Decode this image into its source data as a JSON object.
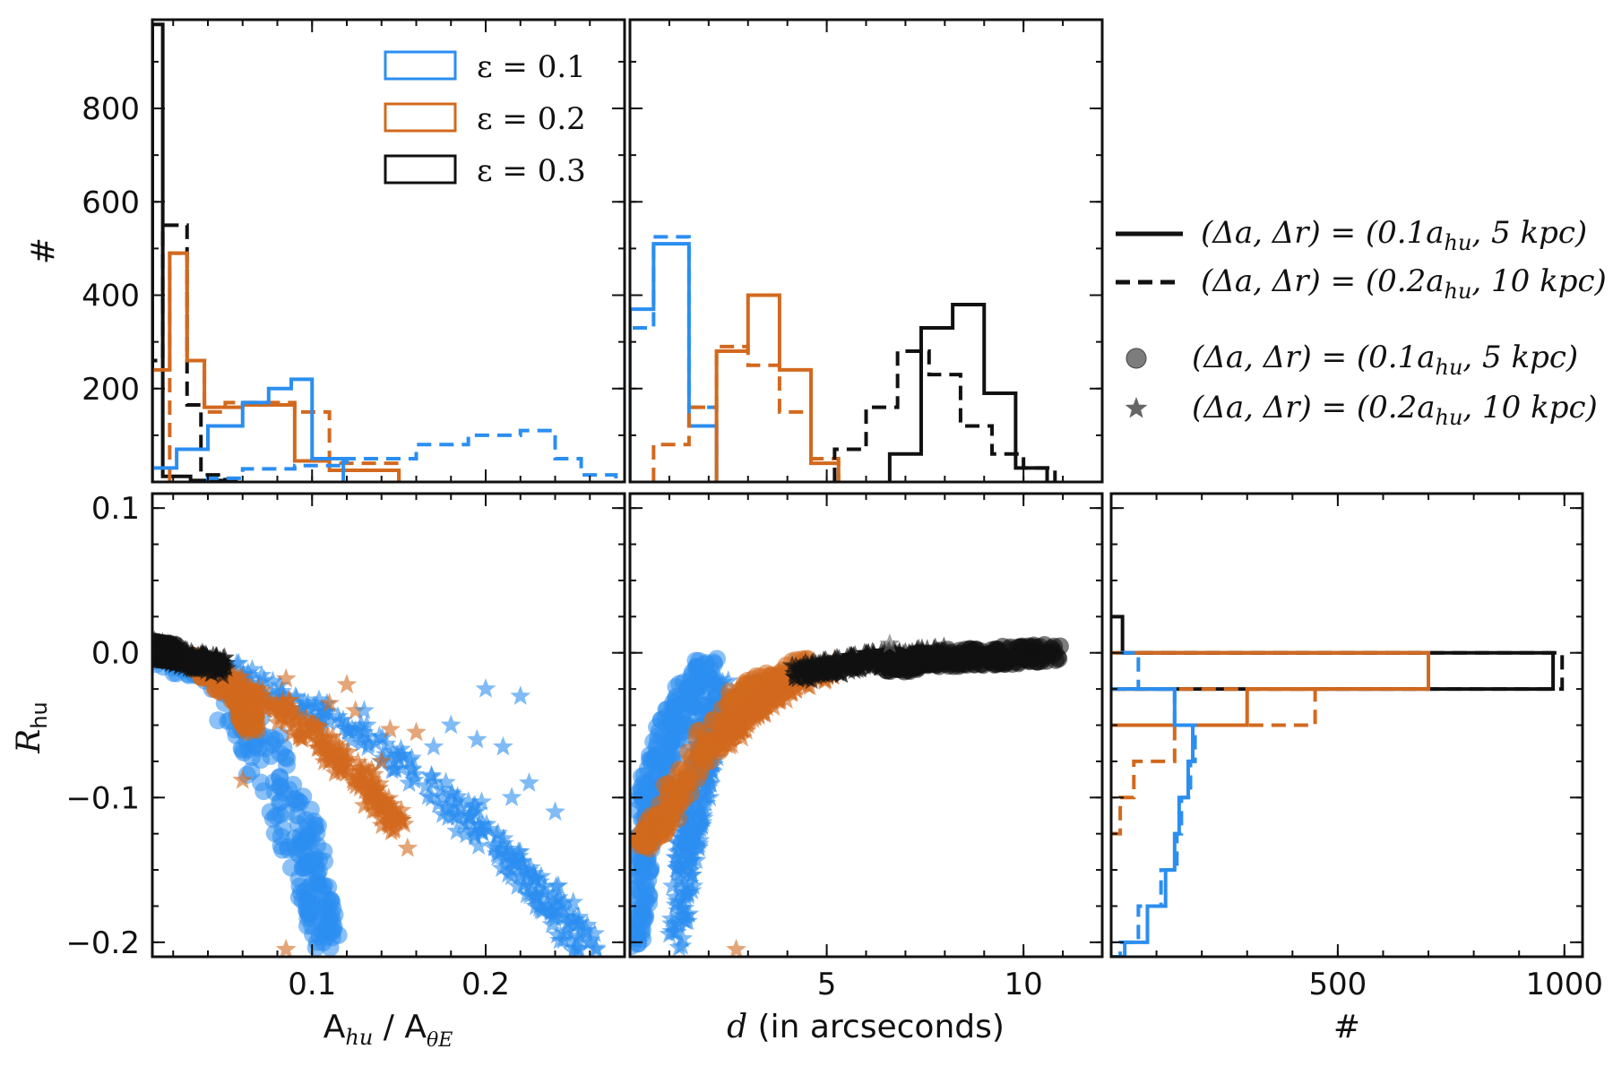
{
  "colors": {
    "eps01": "#2b8ef0",
    "eps02": "#d2691e",
    "eps03": "#111111",
    "marker_grey": "#666666"
  },
  "legends": {
    "epsilon": [
      {
        "label": "ε = 0.1",
        "color": "#2b8ef0"
      },
      {
        "label": "ε = 0.2",
        "color": "#d2691e"
      },
      {
        "label": "ε = 0.3",
        "color": "#111111"
      }
    ],
    "config": [
      {
        "label": "(Δa, Δr) = (0.1a",
        "sub": "hu",
        "tail": ", 5 kpc)",
        "style": "solid"
      },
      {
        "label": "(Δa, Δr) = (0.2a",
        "sub": "hu",
        "tail": ", 10 kpc)",
        "style": "dashed"
      },
      {
        "label": "(Δa, Δr) = (0.1a",
        "sub": "hu",
        "tail": ", 5 kpc)",
        "marker": "circle"
      },
      {
        "label": "(Δa, Δr) = (0.2a",
        "sub": "hu",
        "tail": ", 10 kpc)",
        "marker": "star"
      }
    ]
  },
  "chart_data": [
    {
      "id": "hist_area",
      "type": "histogram",
      "xlim": [
        0.008,
        0.28
      ],
      "ylim": [
        0,
        990
      ],
      "yticks": [
        200,
        400,
        600,
        800
      ],
      "ylabel": "#",
      "series": [
        {
          "name": "ε=0.3 solid",
          "color": "eps03",
          "style": "solid",
          "edges": [
            0.008,
            0.014,
            0.03,
            0.05
          ],
          "counts": [
            980,
            12,
            3
          ]
        },
        {
          "name": "ε=0.3 dashed",
          "color": "eps03",
          "style": "dashed",
          "edges": [
            0.008,
            0.014,
            0.028,
            0.036,
            0.046,
            0.06
          ],
          "counts": [
            260,
            550,
            165,
            15,
            5
          ]
        },
        {
          "name": "ε=0.2 solid",
          "color": "eps02",
          "style": "solid",
          "edges": [
            0.008,
            0.018,
            0.028,
            0.038,
            0.06,
            0.09,
            0.11,
            0.15
          ],
          "counts": [
            240,
            490,
            260,
            160,
            165,
            45,
            25
          ]
        },
        {
          "name": "ε=0.2 dashed",
          "color": "eps02",
          "style": "dashed",
          "edges": [
            0.018,
            0.028,
            0.038,
            0.05,
            0.075,
            0.09,
            0.11,
            0.15
          ],
          "counts": [
            490,
            260,
            150,
            170,
            170,
            150,
            40
          ]
        },
        {
          "name": "ε=0.1 solid",
          "color": "eps01",
          "style": "solid",
          "edges": [
            0.008,
            0.022,
            0.04,
            0.06,
            0.075,
            0.088,
            0.1,
            0.118
          ],
          "counts": [
            30,
            70,
            120,
            170,
            200,
            220,
            50
          ]
        },
        {
          "name": "ε=0.1 dashed",
          "color": "eps01",
          "style": "dashed",
          "edges": [
            0.04,
            0.06,
            0.09,
            0.12,
            0.16,
            0.19,
            0.22,
            0.24,
            0.255,
            0.275
          ],
          "counts": [
            8,
            28,
            35,
            50,
            80,
            100,
            110,
            50,
            15
          ]
        }
      ]
    },
    {
      "id": "hist_d",
      "type": "histogram",
      "xlim": [
        0,
        12
      ],
      "ylim": [
        0,
        990
      ],
      "series": [
        {
          "name": "ε=0.1 solid",
          "color": "eps01",
          "style": "solid",
          "edges": [
            0,
            0.6,
            1.5,
            2.2
          ],
          "counts": [
            370,
            510,
            120
          ]
        },
        {
          "name": "ε=0.1 dashed",
          "color": "eps01",
          "style": "dashed",
          "edges": [
            0,
            0.6,
            1.5,
            2.2
          ],
          "counts": [
            330,
            525,
            160
          ]
        },
        {
          "name": "ε=0.2 solid",
          "color": "eps02",
          "style": "solid",
          "edges": [
            2.2,
            3.0,
            3.8,
            4.6,
            5.3
          ],
          "counts": [
            280,
            400,
            240,
            40
          ]
        },
        {
          "name": "ε=0.2 dashed",
          "color": "eps02",
          "style": "dashed",
          "edges": [
            0.6,
            1.5,
            2.2,
            3.0,
            3.8,
            4.6,
            5.3
          ],
          "counts": [
            80,
            160,
            290,
            250,
            150,
            50
          ]
        },
        {
          "name": "ε=0.3 solid",
          "color": "eps03",
          "style": "solid",
          "edges": [
            6.6,
            7.4,
            8.2,
            9.0,
            9.8,
            10.6
          ],
          "counts": [
            60,
            330,
            380,
            190,
            30
          ]
        },
        {
          "name": "ε=0.3 dashed",
          "color": "eps03",
          "style": "dashed",
          "edges": [
            5.2,
            6.0,
            6.8,
            7.6,
            8.4,
            9.2,
            10.0,
            10.8
          ],
          "counts": [
            70,
            160,
            280,
            230,
            120,
            60,
            30
          ]
        }
      ]
    },
    {
      "id": "scatter_area",
      "type": "scatter",
      "xlim": [
        0.008,
        0.28
      ],
      "ylim": [
        -0.21,
        0.11
      ],
      "xticks": [
        0.1,
        0.2
      ],
      "yticks": [
        -0.2,
        -0.1,
        0.0,
        0.1
      ],
      "xlabel": "A",
      "xlabel_sub": "hu",
      "xlabel_tail": " / A",
      "xlabel_sub2": "θE",
      "ylabel": "R",
      "ylabel_sub": "hu",
      "clouds": [
        {
          "color": "eps01",
          "marker": "circle",
          "path": [
            [
              0.008,
              0.0
            ],
            [
              0.04,
              -0.015
            ],
            [
              0.07,
              -0.06
            ],
            [
              0.09,
              -0.12
            ],
            [
              0.1,
              -0.16
            ],
            [
              0.11,
              -0.2
            ]
          ],
          "width": [
            0.004,
            0.008,
            0.014,
            0.014,
            0.01,
            0.008
          ]
        },
        {
          "color": "eps01",
          "marker": "star",
          "path": [
            [
              0.05,
              -0.01
            ],
            [
              0.12,
              -0.05
            ],
            [
              0.18,
              -0.1
            ],
            [
              0.22,
              -0.15
            ],
            [
              0.26,
              -0.205
            ]
          ],
          "width": [
            0.004,
            0.008,
            0.012,
            0.012,
            0.01
          ]
        },
        {
          "color": "eps02",
          "marker": "circle",
          "path": [
            [
              0.03,
              -0.005
            ],
            [
              0.06,
              -0.03
            ],
            [
              0.065,
              -0.05
            ]
          ],
          "width": [
            0.004,
            0.006,
            0.004
          ]
        },
        {
          "color": "eps02",
          "marker": "star",
          "path": [
            [
              0.04,
              -0.01
            ],
            [
              0.09,
              -0.045
            ],
            [
              0.13,
              -0.09
            ],
            [
              0.15,
              -0.12
            ]
          ],
          "width": [
            0.004,
            0.008,
            0.008,
            0.005
          ]
        },
        {
          "color": "eps03",
          "marker": "star",
          "path": [
            [
              0.008,
              0.003
            ],
            [
              0.03,
              -0.005
            ],
            [
              0.05,
              -0.01
            ]
          ],
          "width": [
            0.003,
            0.004,
            0.003
          ]
        },
        {
          "color": "eps03",
          "marker": "circle",
          "path": [
            [
              0.008,
              0.002
            ],
            [
              0.02,
              0.0
            ]
          ],
          "width": [
            0.002,
            0.002
          ]
        }
      ],
      "outliers": [
        {
          "x": 0.085,
          "y": -0.018,
          "c": "eps02"
        },
        {
          "x": 0.12,
          "y": -0.022,
          "c": "eps02"
        },
        {
          "x": 0.125,
          "y": -0.04,
          "c": "eps02"
        },
        {
          "x": 0.11,
          "y": -0.035,
          "c": "eps02"
        },
        {
          "x": 0.145,
          "y": -0.053,
          "c": "eps02"
        },
        {
          "x": 0.16,
          "y": -0.055,
          "c": "eps02"
        },
        {
          "x": 0.14,
          "y": -0.075,
          "c": "eps02"
        },
        {
          "x": 0.155,
          "y": -0.135,
          "c": "eps02"
        },
        {
          "x": 0.06,
          "y": -0.088,
          "c": "eps02"
        },
        {
          "x": 0.085,
          "y": -0.205,
          "c": "eps02"
        },
        {
          "x": 0.2,
          "y": -0.025,
          "c": "eps01"
        },
        {
          "x": 0.22,
          "y": -0.03,
          "c": "eps01"
        },
        {
          "x": 0.18,
          "y": -0.05,
          "c": "eps01"
        },
        {
          "x": 0.21,
          "y": -0.065,
          "c": "eps01"
        },
        {
          "x": 0.195,
          "y": -0.06,
          "c": "eps01"
        },
        {
          "x": 0.225,
          "y": -0.09,
          "c": "eps01"
        },
        {
          "x": 0.24,
          "y": -0.11,
          "c": "eps01"
        },
        {
          "x": 0.215,
          "y": -0.1,
          "c": "eps01"
        },
        {
          "x": 0.17,
          "y": -0.065,
          "c": "eps01"
        },
        {
          "x": 0.13,
          "y": -0.04,
          "c": "eps01"
        }
      ]
    },
    {
      "id": "scatter_d",
      "type": "scatter",
      "xlim": [
        0,
        12
      ],
      "ylim": [
        -0.21,
        0.11
      ],
      "xticks": [
        5,
        10
      ],
      "xlabel": "d",
      "xlabel_tail": " (in arcseconds)",
      "clouds": [
        {
          "color": "eps01",
          "marker": "circle",
          "path": [
            [
              2.0,
              -0.005
            ],
            [
              1.2,
              -0.04
            ],
            [
              0.6,
              -0.09
            ],
            [
              0.3,
              -0.14
            ],
            [
              0.2,
              -0.2
            ]
          ],
          "width": [
            0.3,
            0.4,
            0.35,
            0.3,
            0.2
          ]
        },
        {
          "color": "eps01",
          "marker": "star",
          "path": [
            [
              2.2,
              -0.02
            ],
            [
              1.8,
              -0.08
            ],
            [
              1.5,
              -0.13
            ],
            [
              1.2,
              -0.2
            ]
          ],
          "width": [
            0.3,
            0.35,
            0.3,
            0.25
          ]
        },
        {
          "color": "eps02",
          "marker": "circle",
          "path": [
            [
              4.6,
              -0.008
            ],
            [
              3.0,
              -0.025
            ],
            [
              1.8,
              -0.07
            ],
            [
              0.8,
              -0.115
            ],
            [
              0.3,
              -0.13
            ]
          ],
          "width": [
            0.3,
            0.45,
            0.4,
            0.3,
            0.2
          ]
        },
        {
          "color": "eps02",
          "marker": "star",
          "path": [
            [
              5.0,
              -0.01
            ],
            [
              3.5,
              -0.03
            ],
            [
              2.4,
              -0.06
            ]
          ],
          "width": [
            0.25,
            0.3,
            0.2
          ]
        },
        {
          "color": "eps03",
          "marker": "circle",
          "path": [
            [
              6.5,
              -0.008
            ],
            [
              8.5,
              -0.003
            ],
            [
              10.9,
              0.0
            ]
          ],
          "width": [
            0.15,
            0.2,
            0.15
          ]
        },
        {
          "color": "eps03",
          "marker": "star",
          "path": [
            [
              4.2,
              -0.015
            ],
            [
              6.0,
              -0.006
            ],
            [
              8.0,
              -0.002
            ]
          ],
          "width": [
            0.12,
            0.15,
            0.12
          ]
        }
      ],
      "outliers": [
        {
          "x": 2.7,
          "y": -0.205,
          "c": "eps02"
        },
        {
          "x": 6.6,
          "y": 0.006,
          "c": "marker_grey"
        }
      ]
    },
    {
      "id": "hist_R",
      "type": "histogram_horizontal",
      "xlim": [
        0,
        1040
      ],
      "ylim": [
        -0.21,
        0.11
      ],
      "xticks": [
        500,
        1000
      ],
      "xlabel": "#",
      "series": [
        {
          "name": "ε=0.3 solid",
          "color": "eps03",
          "style": "solid",
          "edges": [
            -0.025,
            0.0,
            0.025
          ],
          "counts": [
            975,
            25
          ]
        },
        {
          "name": "ε=0.3 dashed",
          "color": "eps03",
          "style": "dashed",
          "edges": [
            -0.025,
            0.0
          ],
          "counts": [
            995
          ]
        },
        {
          "name": "ε=0.2 solid",
          "color": "eps02",
          "style": "solid",
          "edges": [
            -0.05,
            -0.025,
            0.0
          ],
          "counts": [
            300,
            700
          ]
        },
        {
          "name": "ε=0.2 dashed",
          "color": "eps02",
          "style": "dashed",
          "edges": [
            -0.125,
            -0.1,
            -0.075,
            -0.05,
            -0.025
          ],
          "counts": [
            20,
            50,
            140,
            450
          ]
        },
        {
          "name": "ε=0.1 solid",
          "color": "eps01",
          "style": "solid",
          "edges": [
            -0.21,
            -0.2,
            -0.175,
            -0.15,
            -0.125,
            -0.1,
            -0.075,
            -0.05,
            -0.025
          ],
          "counts": [
            30,
            80,
            120,
            140,
            150,
            170,
            180,
            140
          ]
        },
        {
          "name": "ε=0.1 dashed",
          "color": "eps01",
          "style": "dashed",
          "edges": [
            -0.21,
            -0.2,
            -0.175,
            -0.15,
            -0.125,
            -0.1,
            -0.075,
            -0.05,
            -0.025,
            0.0
          ],
          "counts": [
            20,
            60,
            110,
            145,
            155,
            175,
            185,
            140,
            60
          ]
        }
      ]
    }
  ]
}
